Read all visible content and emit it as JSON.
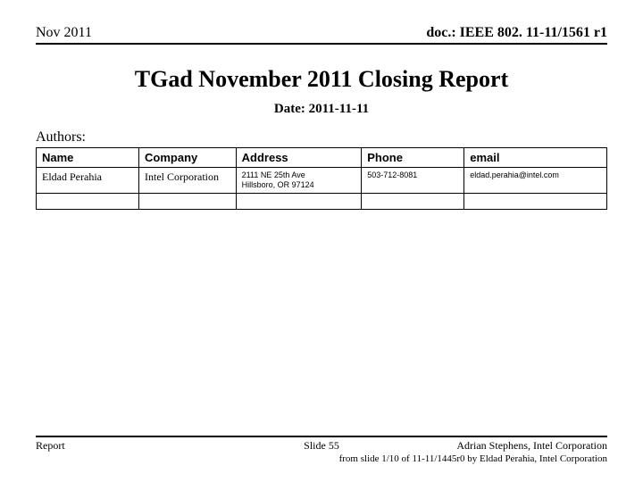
{
  "header": {
    "date_left": "Nov 2011",
    "doc_id": "doc.: IEEE 802. 11-11/1561 r1"
  },
  "title": "TGad November 2011 Closing Report",
  "date_line": "Date: 2011-11-11",
  "authors_label": "Authors:",
  "table": {
    "headers": {
      "name": "Name",
      "company": "Company",
      "address": "Address",
      "phone": "Phone",
      "email": "email"
    },
    "row": {
      "name": "Eldad Perahia",
      "company": "Intel Corporation",
      "address": "2111 NE 25th Ave\nHillsboro, OR 97124",
      "phone": "503-712-8081",
      "email": "eldad.perahia@intel.com"
    }
  },
  "footer": {
    "left": "Report",
    "center": "Slide 55",
    "right": "Adrian Stephens, Intel Corporation",
    "sub": "from slide 1/10 of 11-11/1445r0 by Eldad Perahia, Intel Corporation"
  }
}
